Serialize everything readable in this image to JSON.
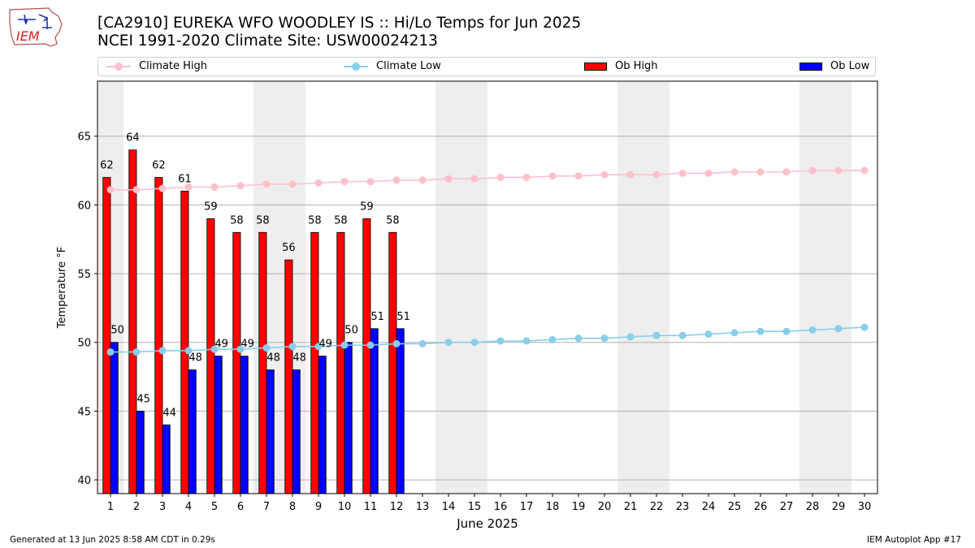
{
  "logo_text": "IEM",
  "chart_data": {
    "type": "bar",
    "title": "[CA2910] EUREKA WFO WOODLEY IS :: Hi/Lo Temps for Jun 2025",
    "subtitle": "NCEI 1991-2020 Climate Site: USW00024213",
    "xlabel": "June 2025",
    "ylabel": "Temperature °F",
    "ylim": [
      39,
      69
    ],
    "yticks": [
      40,
      45,
      50,
      55,
      60,
      65
    ],
    "grid": true,
    "legend_placement": "top",
    "weekend_shading_days": [
      [
        1,
        1
      ],
      [
        7,
        8
      ],
      [
        14,
        15
      ],
      [
        21,
        22
      ],
      [
        28,
        29
      ]
    ],
    "days": [
      1,
      2,
      3,
      4,
      5,
      6,
      7,
      8,
      9,
      10,
      11,
      12,
      13,
      14,
      15,
      16,
      17,
      18,
      19,
      20,
      21,
      22,
      23,
      24,
      25,
      26,
      27,
      28,
      29,
      30
    ],
    "ob_high": [
      62,
      64,
      62,
      61,
      59,
      58,
      58,
      56,
      58,
      58,
      59,
      58
    ],
    "ob_low": [
      50,
      45,
      44,
      48,
      49,
      49,
      48,
      48,
      49,
      50,
      51,
      51
    ],
    "climate_high": [
      61.1,
      61.1,
      61.2,
      61.3,
      61.3,
      61.4,
      61.5,
      61.5,
      61.6,
      61.7,
      61.7,
      61.8,
      61.8,
      61.9,
      61.9,
      62.0,
      62.0,
      62.1,
      62.1,
      62.2,
      62.2,
      62.2,
      62.3,
      62.3,
      62.4,
      62.4,
      62.4,
      62.5,
      62.5,
      62.5
    ],
    "climate_low": [
      49.3,
      49.3,
      49.4,
      49.4,
      49.5,
      49.5,
      49.6,
      49.7,
      49.7,
      49.8,
      49.8,
      49.9,
      49.9,
      50.0,
      50.0,
      50.1,
      50.1,
      50.2,
      50.3,
      50.3,
      50.4,
      50.5,
      50.5,
      50.6,
      50.7,
      50.8,
      50.8,
      50.9,
      51.0,
      51.1
    ],
    "series": [
      {
        "name": "Climate High",
        "color": "#ffc0cb",
        "kind": "line"
      },
      {
        "name": "Climate Low",
        "color": "#87ceeb",
        "kind": "line"
      },
      {
        "name": "Ob High",
        "color": "#ff0000",
        "kind": "bar"
      },
      {
        "name": "Ob Low",
        "color": "#0000ff",
        "kind": "bar"
      }
    ]
  },
  "footer": {
    "left": "Generated at 13 Jun 2025 8:58 AM CDT in 0.29s",
    "right": "IEM Autoplot App #17"
  }
}
